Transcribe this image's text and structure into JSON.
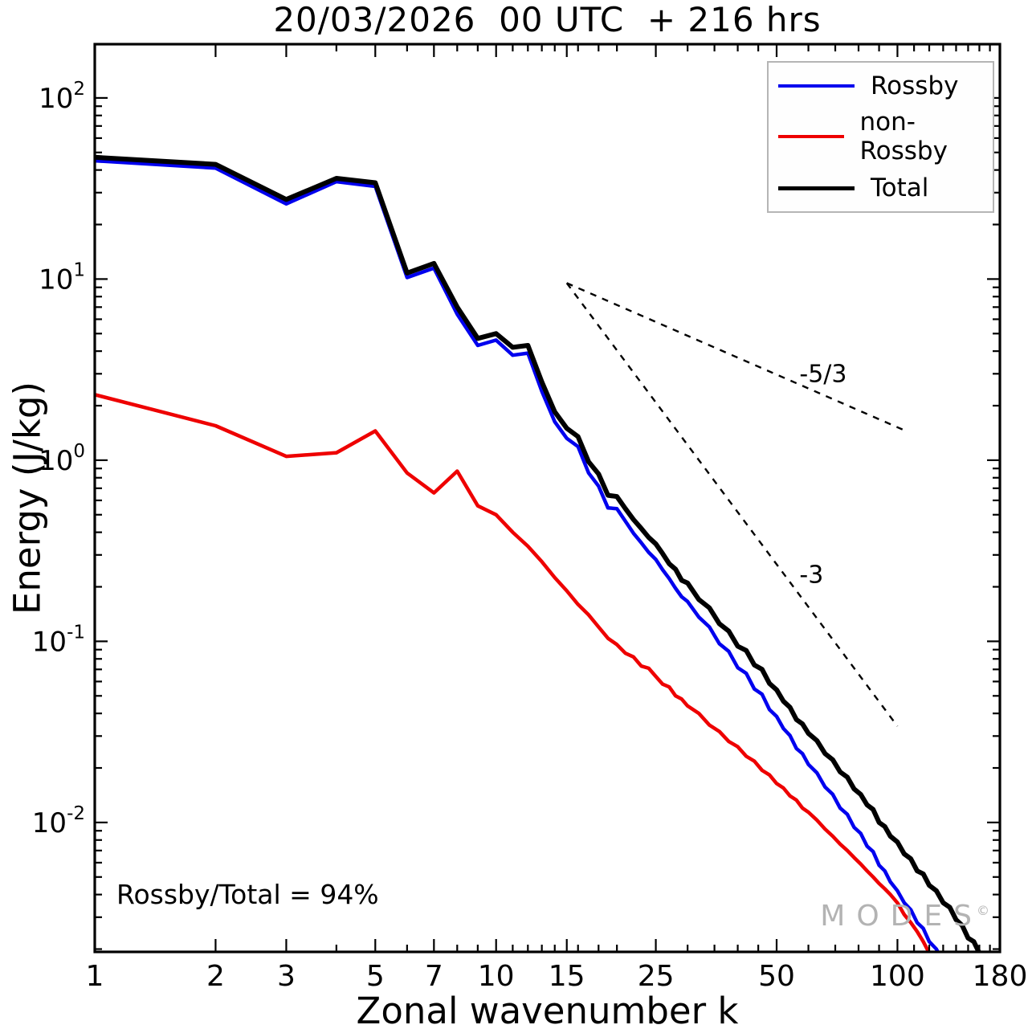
{
  "annotation": "Rossby/Total = 94%",
  "watermark": {
    "text": "MODES",
    "symbol": "©"
  },
  "chart_data": {
    "type": "line",
    "title": "20/03/2026  00 UTC  + 216 hrs",
    "xlabel": "Zonal wavenumber k",
    "ylabel": "Energy (J/kg)",
    "xscale": "log",
    "yscale": "log",
    "xlim": [
      1,
      180
    ],
    "ylim": [
      0.00193,
      198
    ],
    "grid": false,
    "x_major_ticks": [
      1,
      2,
      3,
      5,
      7,
      10,
      15,
      25,
      50,
      100,
      180
    ],
    "x_minor_ticks": [
      4,
      6,
      8,
      9,
      11,
      12,
      13,
      14,
      16,
      18,
      20,
      30,
      35,
      40,
      45,
      60,
      70,
      80,
      90,
      110,
      120,
      130,
      140,
      150,
      160,
      170
    ],
    "y_major_tick_exponents": [
      -2,
      -1,
      0,
      1,
      2
    ],
    "legend": {
      "position": "upper right",
      "entries": [
        "Rossby",
        "non-Rossby",
        "Total"
      ]
    },
    "annotations": [
      "Rossby/Total = 94%"
    ],
    "series": [
      {
        "name": "Rossby",
        "color": "#0000ee",
        "width": 4.5,
        "k": [
          1,
          2,
          3,
          4,
          5,
          6,
          7,
          8,
          9,
          10,
          11,
          12,
          13,
          14,
          15,
          16,
          17,
          18,
          19,
          20,
          21,
          22,
          23,
          24,
          25,
          26,
          27,
          28,
          29,
          30,
          32,
          34,
          36,
          38,
          40,
          42,
          44,
          46,
          48,
          50,
          52,
          54,
          56,
          58,
          60,
          63,
          66,
          69,
          72,
          75,
          78,
          81,
          84,
          87,
          90,
          93,
          96,
          100,
          104,
          108,
          112,
          116,
          120,
          125,
          130,
          135,
          140
        ],
        "E": [
          45,
          41,
          26,
          34.5,
          32.5,
          10.2,
          11.5,
          6.4,
          4.3,
          4.6,
          3.8,
          3.9,
          2.4,
          1.63,
          1.32,
          1.19,
          0.85,
          0.72,
          0.545,
          0.54,
          0.46,
          0.395,
          0.35,
          0.31,
          0.283,
          0.248,
          0.222,
          0.196,
          0.176,
          0.166,
          0.136,
          0.12,
          0.097,
          0.088,
          0.0715,
          0.0665,
          0.0545,
          0.051,
          0.042,
          0.0385,
          0.033,
          0.0302,
          0.0256,
          0.024,
          0.0209,
          0.0188,
          0.0157,
          0.0143,
          0.012,
          0.0111,
          0.0094,
          0.0087,
          0.0074,
          0.0069,
          0.0058,
          0.0054,
          0.0047,
          0.0042,
          0.0036,
          0.0033,
          0.0028,
          0.0026,
          0.0022,
          0.002,
          0.0017,
          0.0015,
          0.0013
        ]
      },
      {
        "name": "non-Rossby",
        "color": "#ee0000",
        "width": 4.5,
        "k": [
          1,
          2,
          3,
          4,
          5,
          6,
          7,
          8,
          9,
          10,
          11,
          12,
          13,
          14,
          15,
          16,
          17,
          18,
          19,
          20,
          21,
          22,
          23,
          24,
          25,
          26,
          27,
          28,
          29,
          30,
          32,
          34,
          36,
          38,
          40,
          42,
          44,
          46,
          48,
          50,
          52,
          54,
          56,
          58,
          60,
          63,
          66,
          69,
          72,
          75,
          78,
          81,
          84,
          87,
          90,
          93,
          96,
          100,
          104,
          108,
          112,
          116,
          120
        ],
        "E": [
          2.3,
          1.55,
          1.05,
          1.1,
          1.45,
          0.85,
          0.66,
          0.87,
          0.56,
          0.5,
          0.4,
          0.335,
          0.275,
          0.225,
          0.19,
          0.16,
          0.14,
          0.12,
          0.104,
          0.096,
          0.086,
          0.082,
          0.073,
          0.071,
          0.064,
          0.058,
          0.056,
          0.05,
          0.048,
          0.044,
          0.04,
          0.0345,
          0.0318,
          0.028,
          0.0262,
          0.0232,
          0.0218,
          0.0194,
          0.0183,
          0.0164,
          0.0155,
          0.014,
          0.0133,
          0.012,
          0.0114,
          0.0103,
          0.0092,
          0.0084,
          0.0076,
          0.007,
          0.0064,
          0.0059,
          0.0054,
          0.005,
          0.0046,
          0.0043,
          0.004,
          0.0036,
          0.0031,
          0.0028,
          0.0025,
          0.0022,
          0.0019
        ]
      },
      {
        "name": "Total",
        "color": "#000000",
        "width": 6,
        "k": [
          1,
          2,
          3,
          4,
          5,
          6,
          7,
          8,
          9,
          10,
          11,
          12,
          13,
          14,
          15,
          16,
          17,
          18,
          19,
          20,
          21,
          22,
          23,
          24,
          25,
          26,
          27,
          28,
          29,
          30,
          32,
          34,
          36,
          38,
          40,
          42,
          44,
          46,
          48,
          50,
          52,
          54,
          56,
          58,
          60,
          63,
          66,
          69,
          72,
          75,
          78,
          81,
          84,
          87,
          90,
          93,
          96,
          100,
          104,
          108,
          112,
          116,
          120,
          125,
          130,
          135,
          140,
          145,
          150,
          155,
          160,
          168
        ],
        "E": [
          47,
          43,
          27.5,
          36,
          34,
          10.8,
          12.2,
          7.0,
          4.7,
          5.0,
          4.2,
          4.3,
          2.7,
          1.85,
          1.5,
          1.35,
          0.98,
          0.84,
          0.64,
          0.63,
          0.54,
          0.47,
          0.42,
          0.375,
          0.345,
          0.305,
          0.268,
          0.25,
          0.217,
          0.21,
          0.17,
          0.153,
          0.125,
          0.114,
          0.094,
          0.089,
          0.074,
          0.07,
          0.0585,
          0.054,
          0.0467,
          0.0432,
          0.037,
          0.035,
          0.031,
          0.0283,
          0.024,
          0.0222,
          0.019,
          0.0178,
          0.0153,
          0.0143,
          0.0125,
          0.0118,
          0.01,
          0.0095,
          0.0084,
          0.0078,
          0.0067,
          0.0063,
          0.0054,
          0.0052,
          0.0045,
          0.0042,
          0.0036,
          0.0034,
          0.0029,
          0.0027,
          0.0023,
          0.0022,
          0.0019,
          0.0016
        ]
      }
    ],
    "reference_lines": [
      {
        "label": "-5/3",
        "k": [
          15,
          105
        ],
        "E": [
          9.5,
          1.45
        ],
        "label_at": [
          57,
          2.7
        ]
      },
      {
        "label": "-3",
        "k": [
          15,
          100
        ],
        "E": [
          9.5,
          0.034
        ],
        "label_at": [
          57,
          0.21
        ]
      }
    ]
  }
}
